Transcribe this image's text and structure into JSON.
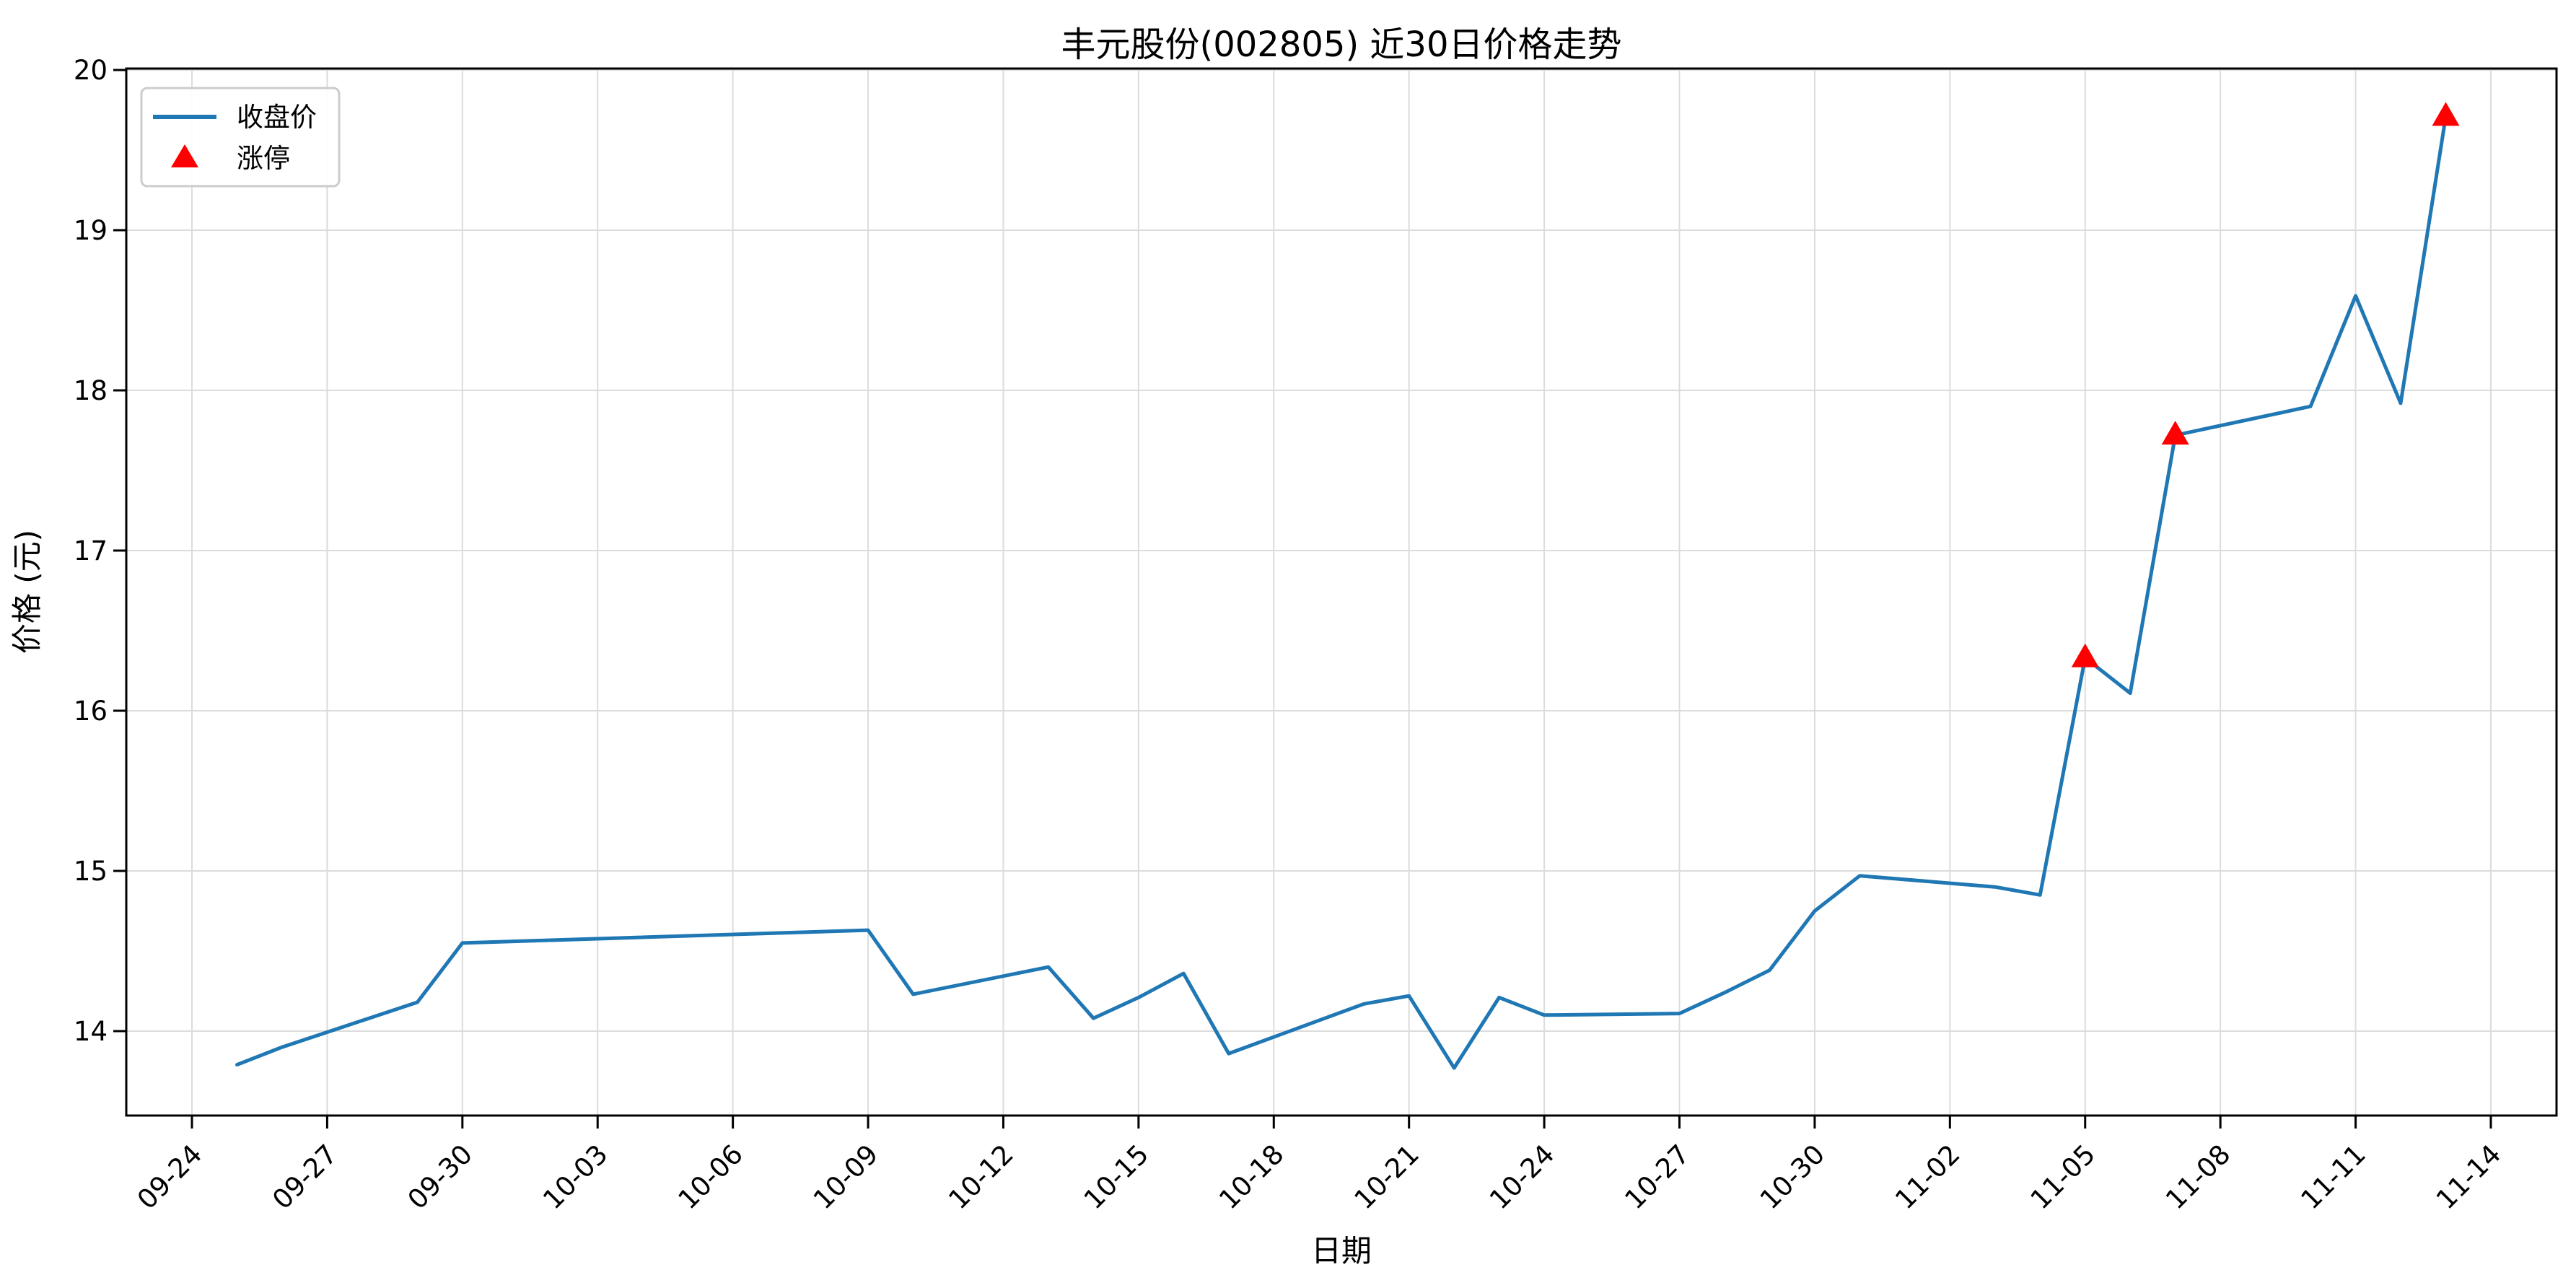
{
  "chart_data": {
    "type": "line",
    "title": "丰元股份(002805) 近30日价格走势",
    "xlabel": "日期",
    "ylabel": "价格 (元)",
    "grid": true,
    "background_color": "#ffffff",
    "grid_color": "#dcdcdc",
    "text_color": "#000000",
    "line_color": "#1f77b4",
    "marker_color": "#ff0000",
    "legend": {
      "position": "upper-left",
      "border_color": "#cccccc",
      "items": [
        {
          "label": "收盘价",
          "marker": "line",
          "color": "#1f77b4"
        },
        {
          "label": "涨停",
          "marker": "triangle-up",
          "color": "#ff0000"
        }
      ]
    },
    "x_ticks": [
      "09-24",
      "09-27",
      "09-30",
      "10-03",
      "10-06",
      "10-09",
      "10-12",
      "10-15",
      "10-18",
      "10-21",
      "10-24",
      "10-27",
      "10-30",
      "11-02",
      "11-05",
      "11-08",
      "11-11",
      "11-14"
    ],
    "y_ticks": [
      14,
      15,
      16,
      17,
      18,
      19,
      20
    ],
    "ylim": [
      13.47,
      20.01
    ],
    "xlim": [
      "09-22",
      "11-15"
    ],
    "series": [
      {
        "name": "收盘价",
        "type": "line",
        "color": "#1f77b4",
        "dates": [
          "09-25",
          "09-26",
          "09-29",
          "09-30",
          "10-09",
          "10-10",
          "10-13",
          "10-14",
          "10-15",
          "10-16",
          "10-17",
          "10-20",
          "10-21",
          "10-22",
          "10-23",
          "10-24",
          "10-27",
          "10-28",
          "10-29",
          "10-30",
          "10-31",
          "11-03",
          "11-04",
          "11-05",
          "11-06",
          "11-07",
          "11-10",
          "11-11",
          "11-12",
          "11-13"
        ],
        "values": [
          13.79,
          13.9,
          14.18,
          14.55,
          14.63,
          14.23,
          14.4,
          14.08,
          14.21,
          14.36,
          13.86,
          14.17,
          14.22,
          13.77,
          14.21,
          14.1,
          14.11,
          14.24,
          14.38,
          14.75,
          14.97,
          14.9,
          14.85,
          16.33,
          16.11,
          17.72,
          17.9,
          18.59,
          17.92,
          19.71
        ]
      },
      {
        "name": "涨停",
        "type": "scatter",
        "marker": "triangle-up",
        "color": "#ff0000",
        "dates": [
          "11-05",
          "11-07",
          "11-13"
        ],
        "values": [
          16.33,
          17.72,
          19.71
        ]
      }
    ]
  }
}
